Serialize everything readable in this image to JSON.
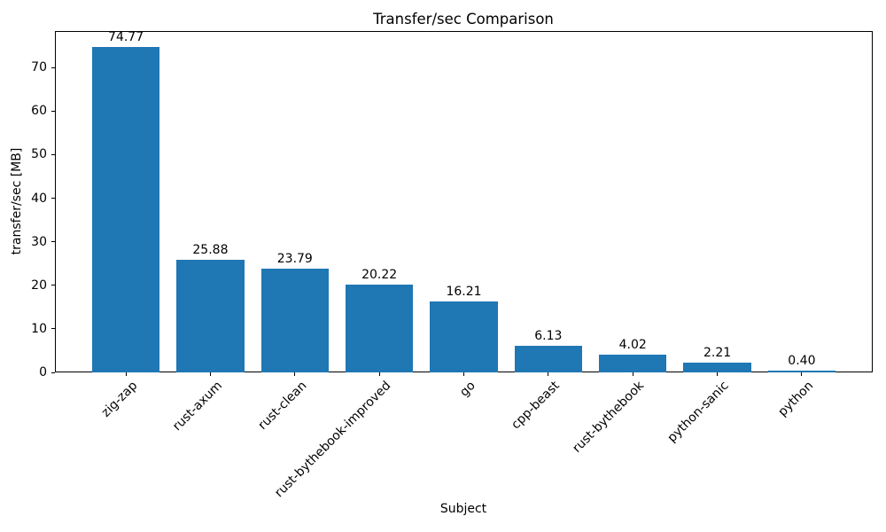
{
  "chart_data": {
    "type": "bar",
    "title": "Transfer/sec Comparison",
    "xlabel": "Subject",
    "ylabel": "transfer/sec [MB]",
    "categories": [
      "zig-zap",
      "rust-axum",
      "rust-clean",
      "rust-bythebook-improved",
      "go",
      "cpp-beast",
      "rust-bythebook",
      "python-sanic",
      "python"
    ],
    "values": [
      74.77,
      25.88,
      23.79,
      20.22,
      16.21,
      6.13,
      4.02,
      2.21,
      0.4
    ],
    "value_labels": [
      "74.77",
      "25.88",
      "23.79",
      "20.22",
      "16.21",
      "6.13",
      "4.02",
      "2.21",
      "0.40"
    ],
    "yticks": [
      0,
      10,
      20,
      30,
      40,
      50,
      60,
      70
    ],
    "ylim": [
      0,
      78.4
    ],
    "xlim": [
      -0.84,
      8.84
    ],
    "bar_width_units": 0.8,
    "xtick_rotation": 45,
    "grid": false,
    "legend": null,
    "bar_color": "#1f77b4",
    "axis_color": "#000000",
    "background_color": "#ffffff"
  }
}
